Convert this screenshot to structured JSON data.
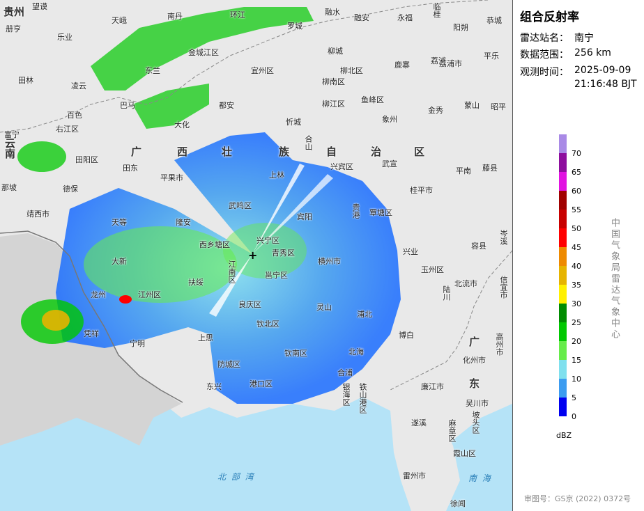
{
  "panel": {
    "title": "组合反射率",
    "station_label": "雷达站名：",
    "station_value": "南宁",
    "range_label": "数据范围：",
    "range_value": "256 km",
    "time_label": "观测时间：",
    "time_date": "2025-09-09",
    "time_clock": "21:16:48 BJT",
    "legend_unit": "dBZ",
    "agency": "中国气象局雷达气象中心",
    "approval": "审图号：GS京 (2022) 0372号"
  },
  "legend": {
    "labels": [
      "70",
      "65",
      "60",
      "55",
      "50",
      "45",
      "40",
      "35",
      "30",
      "25",
      "20",
      "15",
      "10",
      "5",
      "0"
    ],
    "colors": [
      "#a98ae6",
      "#8e0e9e",
      "#e113e1",
      "#a00000",
      "#c80000",
      "#ff0000",
      "#ee8a00",
      "#e6b400",
      "#fff000",
      "#008c00",
      "#00c800",
      "#66ec4a",
      "#7fe0ee",
      "#3c9cf0",
      "#0000f0"
    ]
  },
  "map": {
    "station_symbol": "+",
    "regions": [
      {
        "text": "贵州"
      },
      {
        "text": "云南"
      },
      {
        "text": "广"
      },
      {
        "text": "西"
      },
      {
        "text": "壮"
      },
      {
        "text": "族"
      },
      {
        "text": "自"
      },
      {
        "text": "治"
      },
      {
        "text": "区"
      },
      {
        "text": "广"
      },
      {
        "text": "东"
      }
    ],
    "seas": [
      {
        "text": "北 部 湾"
      },
      {
        "text": "南 海"
      }
    ],
    "places": [
      "望谟",
      "册亨",
      "天峨",
      "南丹",
      "环江",
      "罗城",
      "融水",
      "融安",
      "永福",
      "临桂",
      "恭城",
      "阳朔",
      "乐业",
      "金城江区",
      "柳城",
      "荔浦",
      "田林",
      "凌云",
      "东兰",
      "宜州区",
      "柳北区",
      "鹿寨",
      "蒙山",
      "荔浦市",
      "柳南区",
      "平乐",
      "巴马",
      "都安",
      "柳江区",
      "鱼峰区",
      "金秀",
      "昭平",
      "百色",
      "右江区",
      "大化",
      "忻城",
      "象州",
      "富宁",
      "田阳区",
      "上林",
      "合山",
      "兴宾区",
      "武宣",
      "平南",
      "藤县",
      "那坡",
      "田东",
      "平果市",
      "德保",
      "桂平市",
      "靖西市",
      "武鸣区",
      "宾阳",
      "贵港",
      "覃塘区",
      "天等",
      "隆安",
      "西乡塘区",
      "兴宁区",
      "青秀区",
      "横州市",
      "兴业",
      "容县",
      "大新",
      "江南区",
      "良庆区",
      "玉州区",
      "北流市",
      "龙州",
      "江州区",
      "扶绥",
      "邕宁区",
      "浦北",
      "博白",
      "陆川",
      "凭祥",
      "宁明",
      "钦北区",
      "上思",
      "灵山",
      "钦南区",
      "化州市",
      "高州市",
      "东兴",
      "防城区",
      "港口区",
      "银海区",
      "铁山港区",
      "廉江市",
      "吴川市",
      "合浦",
      "遂溪",
      "麻章区",
      "霞山区",
      "坡头区",
      "雷州市",
      "徐闻",
      "信宜市",
      "岑溪",
      "北海"
    ]
  }
}
